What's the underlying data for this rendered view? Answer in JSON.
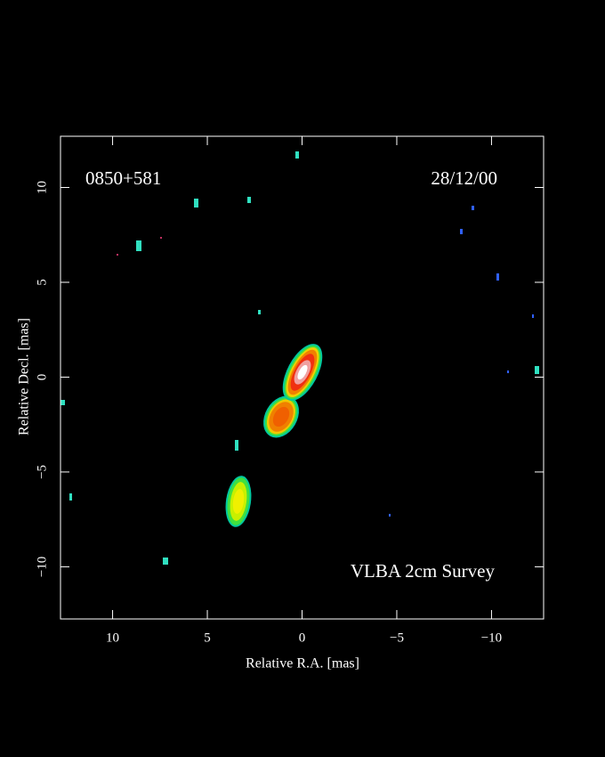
{
  "chart_data": {
    "type": "image",
    "title": "0850+581",
    "subtitle": "28/12/00",
    "annotation": "VLBA 2cm Survey",
    "x_label": "Relative R.A. [mas]",
    "y_label": "Relative Decl. [mas]",
    "xlim": [
      12.75,
      -12.75
    ],
    "ylim": [
      -12.75,
      12.7
    ],
    "xticks": [
      10,
      5,
      0,
      {
        "value": -5,
        "label": "−5"
      },
      {
        "value": -10,
        "label": "−10"
      }
    ],
    "yticks": [
      {
        "value": -10,
        "label": "−10"
      },
      {
        "value": -5,
        "label": "−5"
      },
      0,
      5,
      10
    ]
  }
}
